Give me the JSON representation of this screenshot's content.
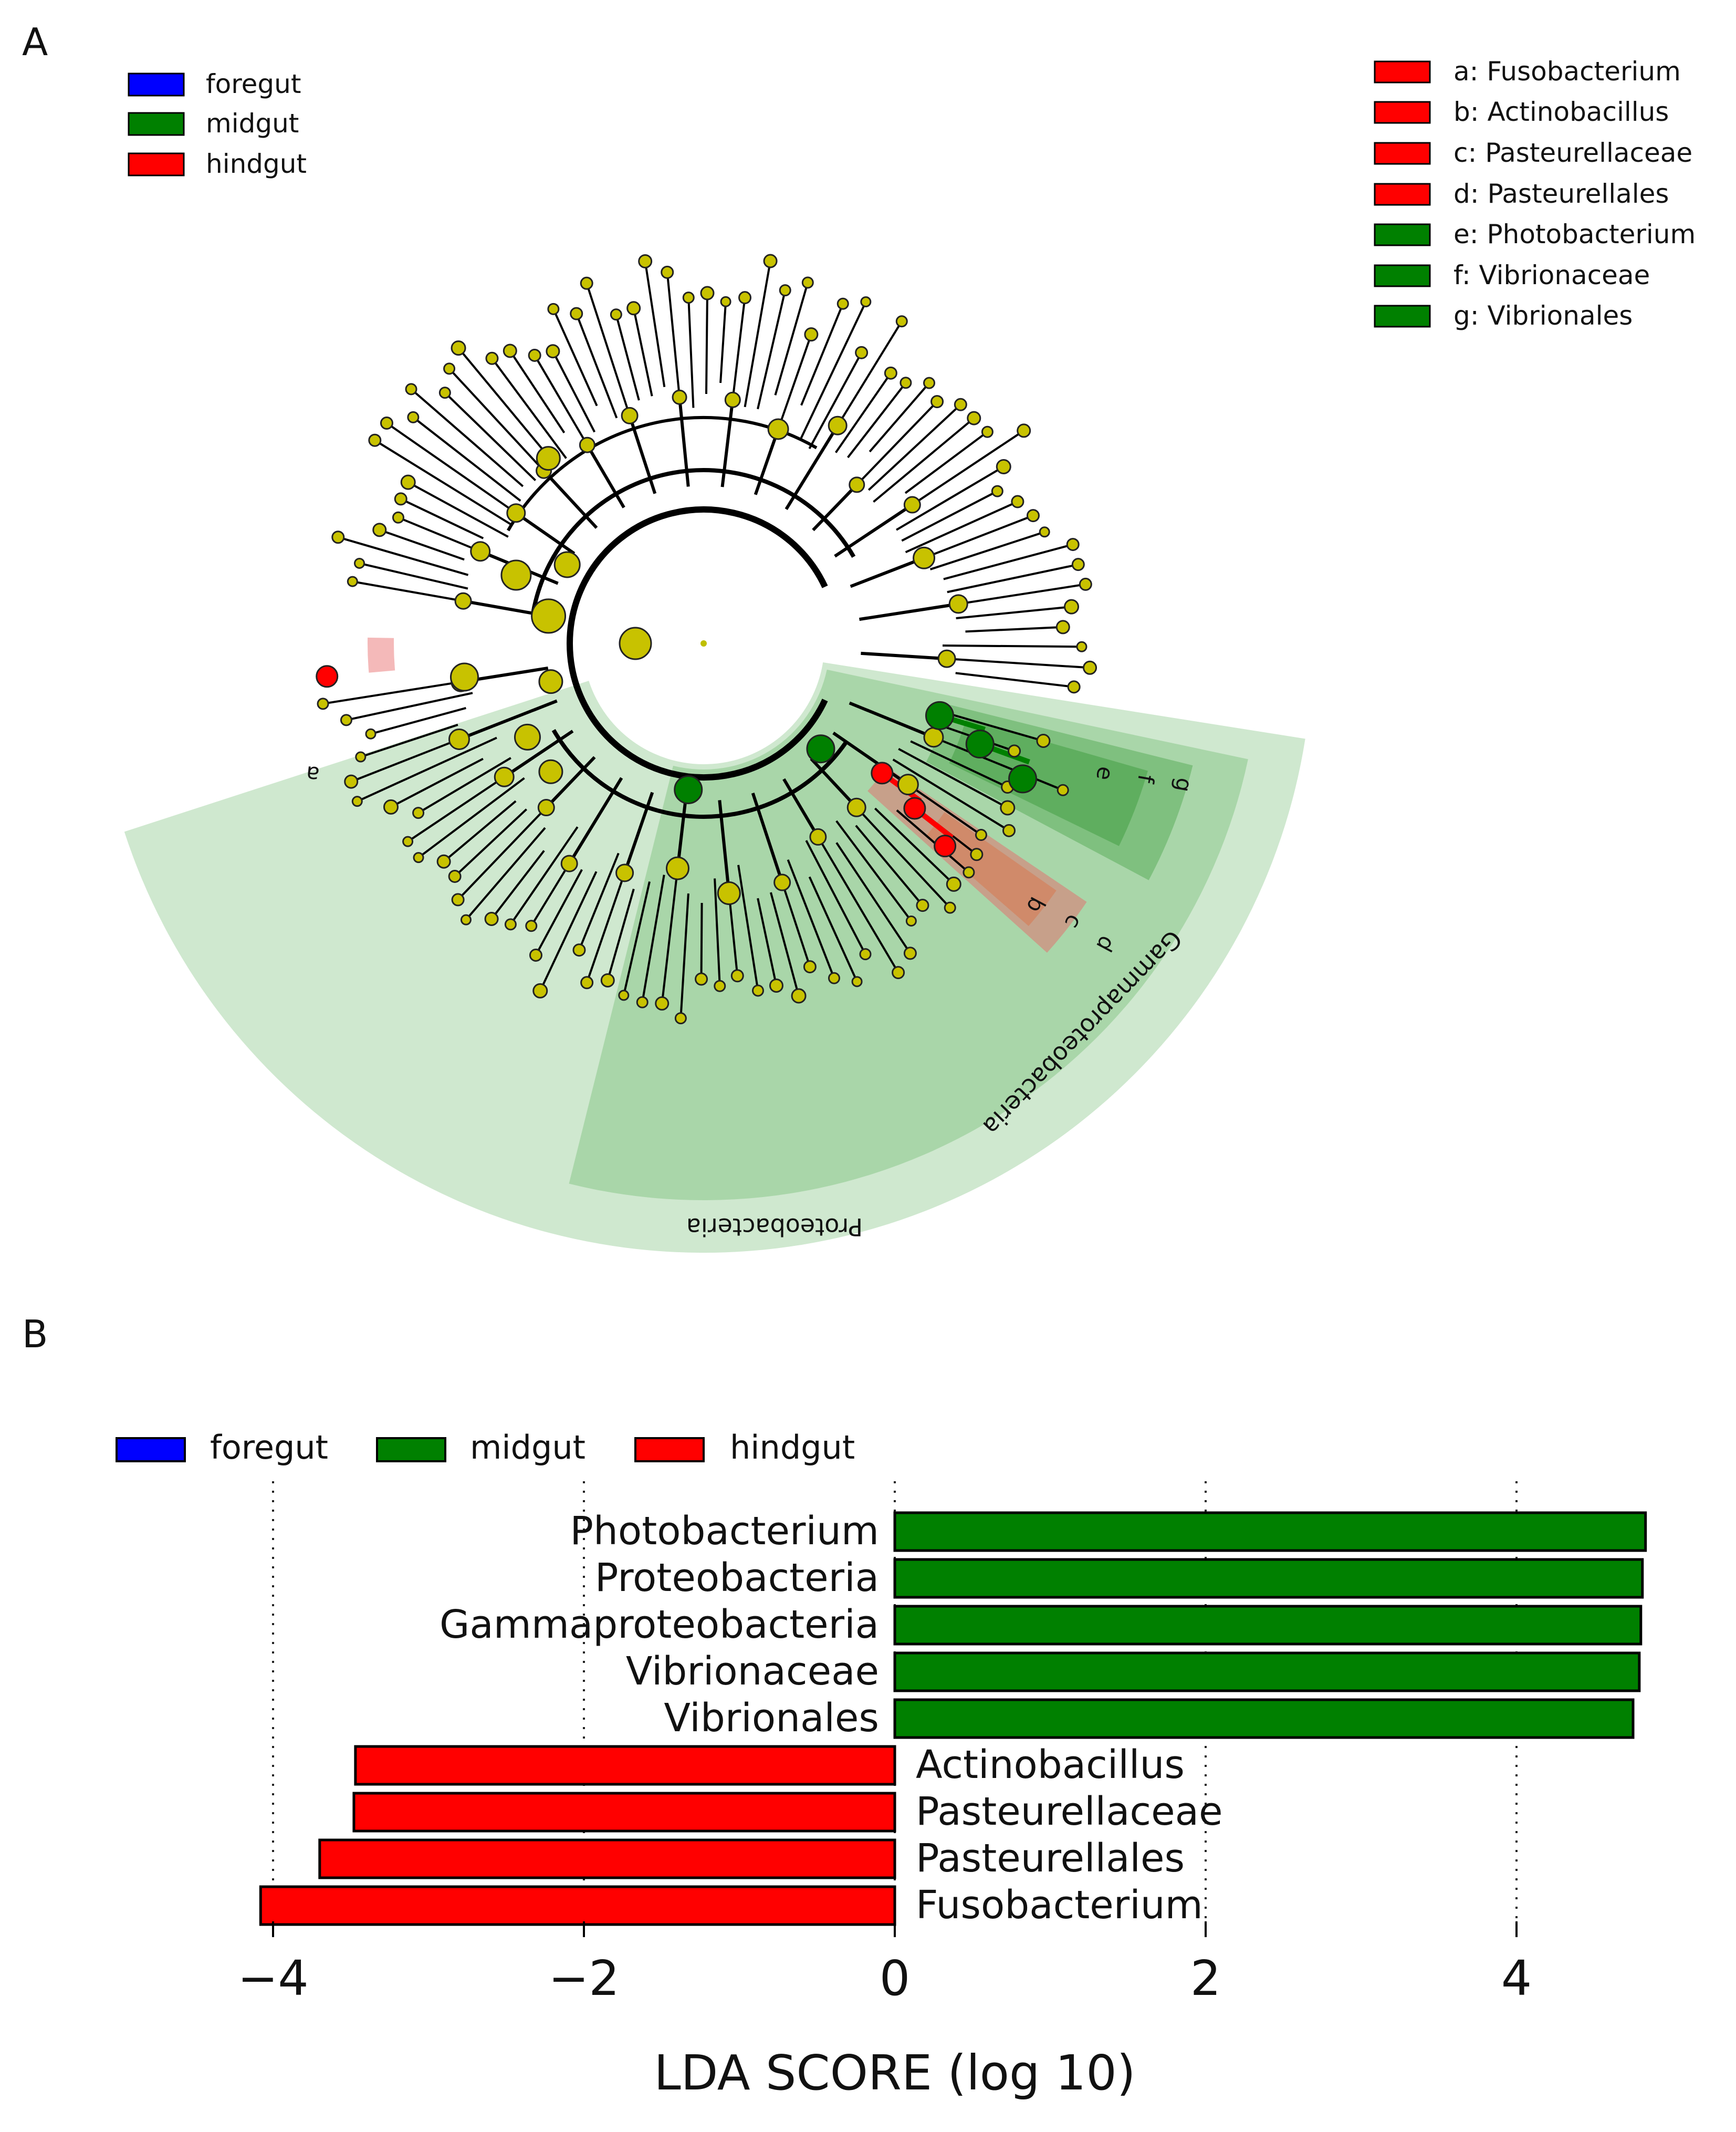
{
  "panel_a": {
    "panel_label": "A",
    "group_legend": [
      {
        "label": "foregut",
        "color": "#0000ff"
      },
      {
        "label": "midgut",
        "color": "#008000"
      },
      {
        "label": "hindgut",
        "color": "#ff0000"
      }
    ],
    "taxa_legend": [
      {
        "label": "a: Fusobacterium",
        "color": "#ff0000"
      },
      {
        "label": "b: Actinobacillus",
        "color": "#ff0000"
      },
      {
        "label": "c: Pasteurellaceae",
        "color": "#ff0000"
      },
      {
        "label": "d: Pasteurellales",
        "color": "#ff0000"
      },
      {
        "label": "e: Photobacterium",
        "color": "#008000"
      },
      {
        "label": "f: Vibrionaceae",
        "color": "#008000"
      },
      {
        "label": "g: Vibrionales",
        "color": "#008000"
      }
    ],
    "clade_labels": {
      "proteobacteria": "Proteobacteria",
      "gammaproteobacteria": "Gammaproteobacteria"
    },
    "node_letters": [
      "a",
      "b",
      "c",
      "d",
      "e",
      "f",
      "g"
    ]
  },
  "panel_b": {
    "panel_label": "B"
  },
  "chart_data": [
    {
      "type": "cladogram",
      "title": "",
      "highlighted_clades": [
        {
          "letter": "a",
          "taxon": "Fusobacterium",
          "group": "hindgut"
        },
        {
          "letter": "b",
          "taxon": "Actinobacillus",
          "group": "hindgut"
        },
        {
          "letter": "c",
          "taxon": "Pasteurellaceae",
          "group": "hindgut"
        },
        {
          "letter": "d",
          "taxon": "Pasteurellales",
          "group": "hindgut"
        },
        {
          "letter": "e",
          "taxon": "Photobacterium",
          "group": "midgut"
        },
        {
          "letter": "f",
          "taxon": "Vibrionaceae",
          "group": "midgut"
        },
        {
          "letter": "g",
          "taxon": "Vibrionales",
          "group": "midgut"
        }
      ],
      "shaded_clades": [
        "Proteobacteria",
        "Gammaproteobacteria"
      ]
    },
    {
      "type": "bar",
      "orientation": "horizontal",
      "xlabel": "LDA SCORE (log 10)",
      "xlim": [
        -4.6,
        5.0
      ],
      "xticks": [
        -4,
        -2,
        0,
        2,
        4
      ],
      "xtick_labels": [
        "−4",
        "−2",
        "0",
        "2",
        "4"
      ],
      "grid": "vertical dotted",
      "legend": [
        {
          "label": "foregut",
          "color": "#0000ff"
        },
        {
          "label": "midgut",
          "color": "#008000"
        },
        {
          "label": "hindgut",
          "color": "#ff0000"
        }
      ],
      "legend_position": "top-left",
      "categories": [
        "Photobacterium",
        "Proteobacteria",
        "Gammaproteobacteria",
        "Vibrionaceae",
        "Vibrionales",
        "Actinobacillus",
        "Pasteurellaceae",
        "Pasteurellales",
        "Fusobacterium"
      ],
      "values": [
        4.83,
        4.81,
        4.8,
        4.79,
        4.75,
        -3.47,
        -3.48,
        -3.7,
        -4.08
      ],
      "groups": [
        "midgut",
        "midgut",
        "midgut",
        "midgut",
        "midgut",
        "hindgut",
        "hindgut",
        "hindgut",
        "hindgut"
      ],
      "colors": {
        "midgut": "#008000",
        "hindgut": "#ff0000",
        "foregut": "#0000ff"
      }
    }
  ]
}
